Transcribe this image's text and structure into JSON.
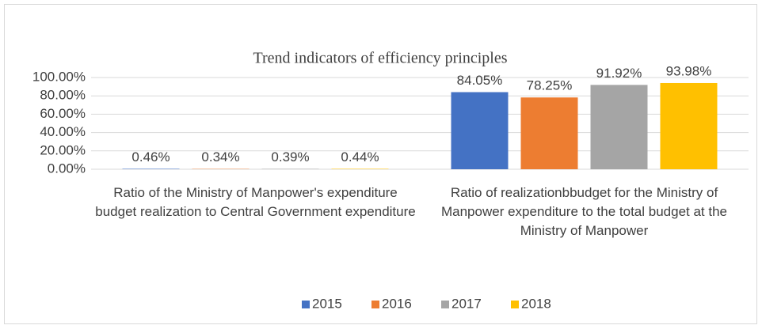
{
  "chart_data": {
    "type": "bar",
    "title": "Trend indicators of efficiency principles",
    "categories": [
      "Ratio of the Ministry of Manpower's expenditure budget realization to Central Government expenditure",
      "Ratio of realizationbbudget for the Ministry of Manpower expenditure to the total budget at the Ministry of Manpower"
    ],
    "series": [
      {
        "name": "2015",
        "color": "#4472c4",
        "values": [
          0.46,
          84.05
        ],
        "value_labels": [
          "0.46%",
          "84.05%"
        ]
      },
      {
        "name": "2016",
        "color": "#ed7d31",
        "values": [
          0.34,
          78.25
        ],
        "value_labels": [
          "0.34%",
          "78.25%"
        ]
      },
      {
        "name": "2017",
        "color": "#a5a5a5",
        "values": [
          0.39,
          91.92
        ],
        "value_labels": [
          "0.39%",
          "91.92%"
        ]
      },
      {
        "name": "2018",
        "color": "#ffc000",
        "values": [
          0.44,
          93.98
        ],
        "value_labels": [
          "0.44%",
          "93.98%"
        ]
      }
    ],
    "ylim": [
      0,
      100
    ],
    "yticks": [
      {
        "value": 0,
        "label": "0.00%"
      },
      {
        "value": 20,
        "label": "20.00%"
      },
      {
        "value": 40,
        "label": "40.00%"
      },
      {
        "value": 60,
        "label": "60.00%"
      },
      {
        "value": 80,
        "label": "80.00%"
      },
      {
        "value": 100,
        "label": "100.00%"
      }
    ],
    "grid": true,
    "legend": "bottom"
  }
}
